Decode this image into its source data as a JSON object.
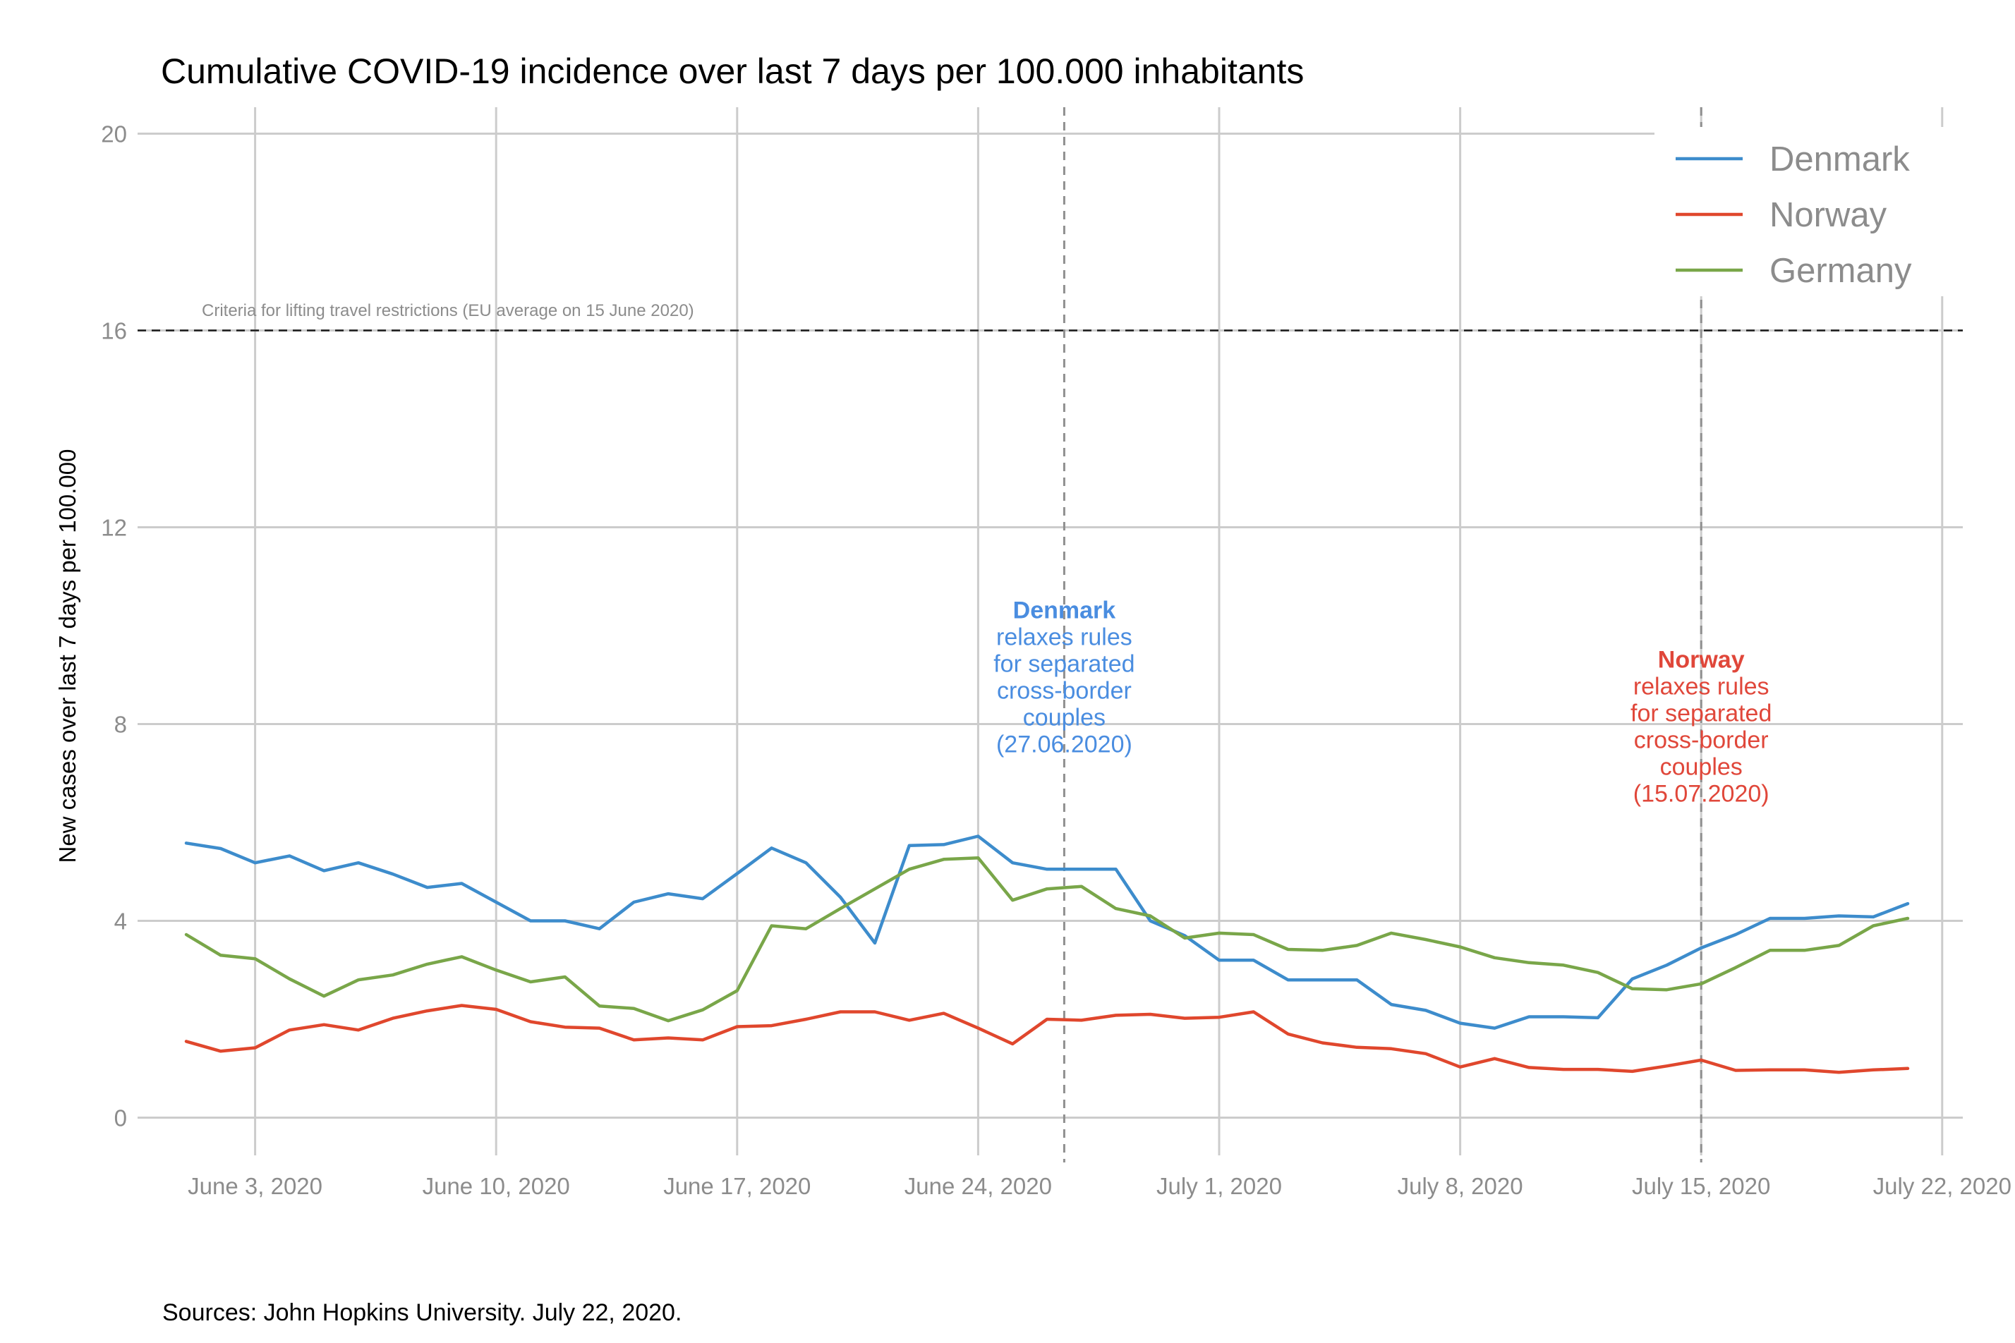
{
  "colors": {
    "Denmark": "#3d8ccc",
    "Norway": "#e0472d",
    "Germany": "#79a649",
    "grid": "#cccccc",
    "ticks": "#8c8c8c",
    "denmark_annotation": "#4a8de0",
    "norway_annotation": "#e0473a"
  },
  "chart_data": {
    "type": "line",
    "title": "Cumulative COVID-19 incidence over last 7 days per 100.000 inhabitants",
    "ylabel": "New cases over last 7 days per 100.000",
    "xlabel": "",
    "caption": "Sources: John Hopkins University. July 22, 2020.",
    "ylim": [
      -0.8,
      20.4
    ],
    "yticks": [
      0,
      4,
      8,
      12,
      16,
      20
    ],
    "xlim": [
      0,
      51.5
    ],
    "xticks": [
      {
        "x": 2,
        "label": "June 3, 2020"
      },
      {
        "x": 9,
        "label": "June 10, 2020"
      },
      {
        "x": 16,
        "label": "June 17, 2020"
      },
      {
        "x": 23,
        "label": "June 24, 2020"
      },
      {
        "x": 30,
        "label": "July 1, 2020"
      },
      {
        "x": 37,
        "label": "July 8, 2020"
      },
      {
        "x": 44,
        "label": "July 15, 2020"
      },
      {
        "x": 51,
        "label": "July 22, 2020"
      }
    ],
    "x": [
      0,
      1,
      2,
      3,
      4,
      5,
      6,
      7,
      8,
      9,
      10,
      11,
      12,
      13,
      14,
      15,
      16,
      17,
      18,
      19,
      20,
      21,
      22,
      23,
      24,
      25,
      26,
      27,
      28,
      29,
      30,
      31,
      32,
      33,
      34,
      35,
      36,
      37,
      38,
      39,
      40,
      41,
      42,
      43,
      44,
      45,
      46,
      47,
      48,
      49,
      50
    ],
    "series": [
      {
        "name": "Denmark",
        "values": [
          5.58,
          5.47,
          5.18,
          5.32,
          5.02,
          5.18,
          4.95,
          4.68,
          4.76,
          4.38,
          4.0,
          4.0,
          3.84,
          4.38,
          4.55,
          4.45,
          4.96,
          5.48,
          5.18,
          4.48,
          3.55,
          5.53,
          5.55,
          5.72,
          5.18,
          5.05,
          5.05,
          5.05,
          4.0,
          3.7,
          3.2,
          3.2,
          2.8,
          2.8,
          2.8,
          2.3,
          2.18,
          1.92,
          1.82,
          2.05,
          2.05,
          2.03,
          2.82,
          3.1,
          3.45,
          3.72,
          4.05,
          4.05,
          4.1,
          4.08,
          4.35
        ]
      },
      {
        "name": "Norway",
        "values": [
          1.55,
          1.35,
          1.42,
          1.78,
          1.89,
          1.78,
          2.02,
          2.17,
          2.28,
          2.2,
          1.95,
          1.84,
          1.82,
          1.58,
          1.62,
          1.58,
          1.85,
          1.87,
          2.0,
          2.15,
          2.15,
          1.98,
          2.12,
          1.82,
          1.5,
          2.0,
          1.98,
          2.08,
          2.1,
          2.02,
          2.04,
          2.15,
          1.7,
          1.52,
          1.43,
          1.4,
          1.3,
          1.03,
          1.2,
          1.02,
          0.98,
          0.98,
          0.94,
          1.05,
          1.17,
          0.96,
          0.97,
          0.97,
          0.92,
          0.97,
          1.0
        ]
      },
      {
        "name": "Germany",
        "values": [
          3.72,
          3.3,
          3.23,
          2.82,
          2.47,
          2.8,
          2.9,
          3.12,
          3.27,
          3.0,
          2.76,
          2.86,
          2.27,
          2.22,
          1.97,
          2.19,
          2.58,
          3.9,
          3.84,
          4.25,
          4.65,
          5.05,
          5.25,
          5.28,
          4.42,
          4.65,
          4.7,
          4.25,
          4.1,
          3.65,
          3.75,
          3.72,
          3.42,
          3.4,
          3.5,
          3.75,
          3.62,
          3.47,
          3.25,
          3.15,
          3.1,
          2.95,
          2.62,
          2.6,
          2.72,
          3.05,
          3.4,
          3.4,
          3.5,
          3.9,
          4.05
        ]
      }
    ],
    "legend": {
      "position": "top-right",
      "entries": [
        "Denmark",
        "Norway",
        "Germany"
      ]
    },
    "hline": {
      "y": 16,
      "label": "Criteria for lifting travel restrictions (EU average on 15 June 2020)"
    },
    "vlines": [
      {
        "x": 25.5,
        "country": "Denmark",
        "label_bold": "Denmark",
        "label_lines": [
          "relaxes rules",
          "for separated",
          "cross-border",
          "couples",
          "(27.06.2020)"
        ],
        "label_y": 10.15
      },
      {
        "x": 44,
        "country": "Norway",
        "label_bold": "Norway",
        "label_lines": [
          "relaxes rules",
          "for separated",
          "cross-border",
          "couples",
          "(15.07.2020)"
        ],
        "label_y": 9.15
      }
    ]
  }
}
